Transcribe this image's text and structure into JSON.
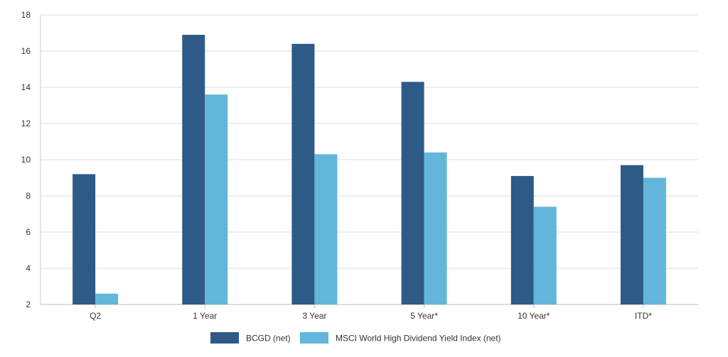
{
  "chart_data": {
    "type": "bar",
    "title": "",
    "xlabel": "",
    "ylabel": "",
    "categories": [
      "Q2",
      "1 Year",
      "3 Year",
      "5 Year*",
      "10 Year*",
      "ITD*"
    ],
    "series": [
      {
        "name": "BCGD (net)",
        "color": "#2e5a87",
        "values": [
          9.2,
          16.9,
          16.4,
          14.3,
          9.1,
          9.7
        ]
      },
      {
        "name": "MSCI World High Dividend Yield Index (net)",
        "color": "#62b6da",
        "values": [
          2.6,
          13.6,
          10.3,
          10.4,
          7.4,
          9.0
        ]
      }
    ],
    "ylim": [
      2,
      18
    ],
    "yticks": [
      2,
      4,
      6,
      8,
      10,
      12,
      14,
      16,
      18
    ],
    "grid": true,
    "legend_position": "bottom-center"
  }
}
